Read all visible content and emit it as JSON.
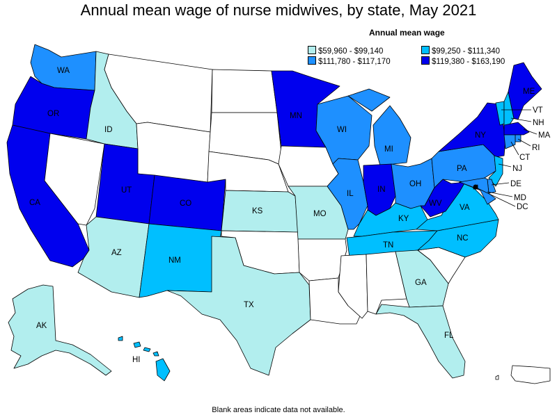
{
  "title": "Annual mean wage of nurse midwives, by state, May 2021",
  "legend": {
    "title": "Annual mean wage",
    "ranges": [
      {
        "label": "$59,960 - $99,140",
        "color": "#b2eeee"
      },
      {
        "label": "$99,250 - $111,340",
        "color": "#00bfff"
      },
      {
        "label": "$111,780 - $117,170",
        "color": "#1e90ff"
      },
      {
        "label": "$119,380 - $163,190",
        "color": "#0000ee"
      }
    ]
  },
  "no_data_color": "#ffffff",
  "footnote": "Blank areas indicate data not available.",
  "states": {
    "WA": {
      "label": "WA",
      "bin": 2
    },
    "OR": {
      "label": "OR",
      "bin": 3
    },
    "CA": {
      "label": "CA",
      "bin": 3
    },
    "ID": {
      "label": "ID",
      "bin": 0
    },
    "NV": {
      "label": "",
      "bin": null
    },
    "MT": {
      "label": "",
      "bin": null
    },
    "WY": {
      "label": "",
      "bin": null
    },
    "UT": {
      "label": "UT",
      "bin": 3
    },
    "CO": {
      "label": "CO",
      "bin": 3
    },
    "AZ": {
      "label": "AZ",
      "bin": 0
    },
    "NM": {
      "label": "NM",
      "bin": 1
    },
    "ND": {
      "label": "",
      "bin": null
    },
    "SD": {
      "label": "",
      "bin": null
    },
    "NE": {
      "label": "",
      "bin": null
    },
    "KS": {
      "label": "KS",
      "bin": 0
    },
    "OK": {
      "label": "",
      "bin": null
    },
    "TX": {
      "label": "TX",
      "bin": 0
    },
    "MN": {
      "label": "MN",
      "bin": 3
    },
    "IA": {
      "label": "",
      "bin": null
    },
    "MO": {
      "label": "MO",
      "bin": 0
    },
    "AR": {
      "label": "",
      "bin": null
    },
    "LA": {
      "label": "",
      "bin": null
    },
    "WI": {
      "label": "WI",
      "bin": 2
    },
    "IL": {
      "label": "IL",
      "bin": 2
    },
    "MI": {
      "label": "MI",
      "bin": 2
    },
    "IN": {
      "label": "IN",
      "bin": 3
    },
    "OH": {
      "label": "OH",
      "bin": 2
    },
    "KY": {
      "label": "KY",
      "bin": 1
    },
    "TN": {
      "label": "TN",
      "bin": 1
    },
    "MS": {
      "label": "",
      "bin": null
    },
    "AL": {
      "label": "",
      "bin": null
    },
    "GA": {
      "label": "GA",
      "bin": 0
    },
    "FL": {
      "label": "FL",
      "bin": 0
    },
    "SC": {
      "label": "",
      "bin": null
    },
    "NC": {
      "label": "NC",
      "bin": 1
    },
    "VA": {
      "label": "VA",
      "bin": 1
    },
    "WV": {
      "label": "WV",
      "bin": 3
    },
    "PA": {
      "label": "PA",
      "bin": 2
    },
    "NY": {
      "label": "NY",
      "bin": 3
    },
    "ME": {
      "label": "ME",
      "bin": 3
    },
    "VT": {
      "label": "VT",
      "bin": 1
    },
    "NH": {
      "label": "NH",
      "bin": 1
    },
    "MA": {
      "label": "MA",
      "bin": 3
    },
    "RI": {
      "label": "RI",
      "bin": 2
    },
    "CT": {
      "label": "CT",
      "bin": 2
    },
    "NJ": {
      "label": "NJ",
      "bin": 1
    },
    "DE": {
      "label": "DE",
      "bin": 2
    },
    "MD": {
      "label": "MD",
      "bin": 2
    },
    "DC": {
      "label": "DC",
      "bin": 3
    },
    "AK": {
      "label": "AK",
      "bin": 0
    },
    "HI": {
      "label": "HI",
      "bin": 1
    },
    "PR": {
      "label": "",
      "bin": null
    }
  }
}
